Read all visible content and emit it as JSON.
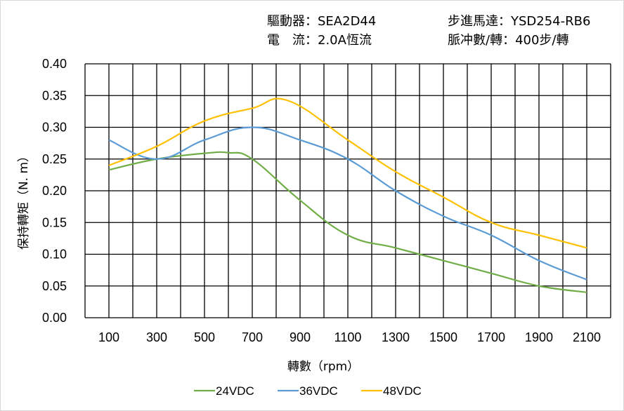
{
  "header": {
    "driver": "驅動器：SEA2D44",
    "motor": "步進馬達：YSD254-RB6",
    "current": "電　流：2.0A恆流",
    "pulses": "脈冲數/轉：400步/轉"
  },
  "chart_data": {
    "type": "line",
    "xlabel": "轉數（rpm）",
    "ylabel": "保持轉矩（N. m）",
    "xlim": [
      0,
      2200
    ],
    "ylim": [
      0,
      0.4
    ],
    "xticks": [
      "100",
      "300",
      "500",
      "700",
      "900",
      "1100",
      "1300",
      "1500",
      "1700",
      "1900",
      "2100"
    ],
    "yticks": [
      "0.00",
      "0.05",
      "0.10",
      "0.15",
      "0.20",
      "0.25",
      "0.30",
      "0.35",
      "0.40"
    ],
    "grid": true,
    "legend": "bottom",
    "series": [
      {
        "name": "24VDC",
        "color": "#70ad47",
        "x": [
          100,
          300,
          500,
          600,
          700,
          900,
          1100,
          1300,
          1500,
          1700,
          1900,
          2100
        ],
        "y": [
          0.233,
          0.25,
          0.259,
          0.26,
          0.25,
          0.185,
          0.13,
          0.11,
          0.09,
          0.07,
          0.05,
          0.04
        ]
      },
      {
        "name": "36VDC",
        "color": "#5b9bd5",
        "x": [
          100,
          300,
          500,
          700,
          900,
          1100,
          1300,
          1500,
          1700,
          1900,
          2100
        ],
        "y": [
          0.28,
          0.25,
          0.28,
          0.3,
          0.28,
          0.25,
          0.2,
          0.16,
          0.13,
          0.09,
          0.06
        ]
      },
      {
        "name": "48VDC",
        "color": "#ffc000",
        "x": [
          100,
          300,
          500,
          700,
          850,
          1100,
          1300,
          1500,
          1700,
          1900,
          2100
        ],
        "y": [
          0.24,
          0.27,
          0.31,
          0.33,
          0.342,
          0.28,
          0.23,
          0.19,
          0.15,
          0.13,
          0.11
        ]
      }
    ]
  }
}
